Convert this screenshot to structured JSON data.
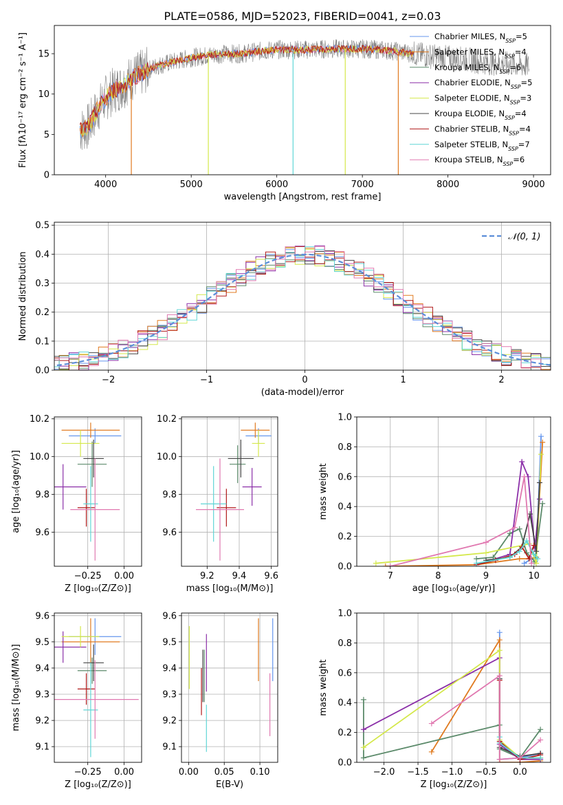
{
  "figure": {
    "title": "PLATE=0586, MJD=52023, FIBERID=0041, z=0.03"
  },
  "colors": [
    "#6495ed",
    "#e07a1f",
    "#5b8a6a",
    "#8b2fa8",
    "#d4e84a",
    "#444444",
    "#b01818",
    "#5fd6d6",
    "#e078b0"
  ],
  "chart_data": [
    {
      "id": "spectrum",
      "type": "line",
      "xlabel": "wavelength [Angstrom, rest frame]",
      "ylabel": "Flux [fλ10⁻¹⁷ erg cm⁻² s⁻¹ A⁻¹]",
      "xlim": [
        3400,
        9200
      ],
      "ylim": [
        0,
        18.5
      ],
      "xticks": [
        "4000",
        "5000",
        "6000",
        "7000",
        "8000",
        "9000"
      ],
      "yticks": [
        "0",
        "5",
        "10",
        "15"
      ],
      "legend": [
        "Chabrier MILES, N_SSP=5",
        "Salpeter MILES, N_SSP=4",
        "Kroupa MILES, N_SSP=6",
        "Chabrier ELODIE, N_SSP=5",
        "Salpeter ELODIE, N_SSP=3",
        "Kroupa ELODIE, N_SSP=4",
        "Chabrier STELIB, N_SSP=4",
        "Salpeter STELIB, N_SSP=7",
        "Kroupa STELIB, N_SSP=6"
      ],
      "envelope": {
        "x": [
          3700,
          3800,
          3900,
          4000,
          4100,
          4200,
          4300,
          4400,
          4500,
          4600,
          4800,
          5000,
          5200,
          5400,
          5600,
          5800,
          6000,
          6200,
          6400,
          6600,
          6800,
          7000,
          7200,
          7400,
          7600,
          7800,
          8000,
          8200,
          8400,
          8600,
          8800,
          8950
        ],
        "y": [
          5.5,
          6,
          8,
          9.5,
          10.5,
          11,
          12,
          12.5,
          13,
          13.5,
          14,
          14.5,
          14.8,
          15,
          15,
          15.3,
          15.5,
          15.5,
          15.5,
          15.6,
          15.6,
          15.6,
          15.5,
          15.3,
          15,
          14.7,
          14.5,
          14.3,
          14,
          13.8,
          13.6,
          13.5
        ]
      }
    },
    {
      "id": "residuals",
      "type": "histogram",
      "xlabel": "(data-model)/error",
      "ylabel": "Normed distribution",
      "xlim": [
        -2.55,
        2.5
      ],
      "ylim": [
        0,
        0.51
      ],
      "xticks": [
        "−2",
        "−1",
        "0",
        "1",
        "2"
      ],
      "yticks": [
        "0.0",
        "0.1",
        "0.2",
        "0.3",
        "0.4",
        "0.5"
      ],
      "legend": "𝒩(0, 1)"
    },
    {
      "id": "age-vs-Z",
      "type": "scatter",
      "xlabel": "Z [log₁₀(Z/Z⊙)]",
      "ylabel": "age  [log₁₀(age/yr)]",
      "xlim": [
        -0.48,
        0.12
      ],
      "ylim": [
        9.42,
        10.21
      ],
      "xticks": [
        "−0.25",
        "0.00"
      ],
      "yticks": [
        "9.6",
        "9.8",
        "10.0",
        "10.2"
      ],
      "points": [
        {
          "x": -0.2,
          "y": 10.11,
          "ex": 0.18,
          "ey": 0.04
        },
        {
          "x": -0.23,
          "y": 10.14,
          "ex": 0.2,
          "ey": 0.04
        },
        {
          "x": -0.22,
          "y": 9.96,
          "ex": 0.1,
          "ey": 0.12
        },
        {
          "x": -0.42,
          "y": 9.84,
          "ex": 0.16,
          "ey": 0.12
        },
        {
          "x": -0.3,
          "y": 10.07,
          "ex": 0.13,
          "ey": 0.07
        },
        {
          "x": -0.21,
          "y": 9.99,
          "ex": 0.07,
          "ey": 0.1
        },
        {
          "x": -0.26,
          "y": 9.73,
          "ex": 0.06,
          "ey": 0.1
        },
        {
          "x": -0.23,
          "y": 9.75,
          "ex": 0.05,
          "ey": 0.2
        },
        {
          "x": -0.2,
          "y": 9.72,
          "ex": 0.17,
          "ey": 0.27
        }
      ]
    },
    {
      "id": "age-vs-mass",
      "type": "scatter",
      "xlabel": "mass [log₁₀(M/M⊙)]",
      "ylabel": "",
      "xlim": [
        9.04,
        9.64
      ],
      "ylim": [
        9.42,
        10.21
      ],
      "xticks": [
        "9.2",
        "9.4",
        "9.6"
      ],
      "yticks": [
        "9.6",
        "9.8",
        "10.0",
        "10.2"
      ],
      "points": [
        {
          "x": 9.52,
          "y": 10.11,
          "ex": 0.08,
          "ey": 0.04
        },
        {
          "x": 9.5,
          "y": 10.14,
          "ex": 0.09,
          "ey": 0.04
        },
        {
          "x": 9.39,
          "y": 9.96,
          "ex": 0.05,
          "ey": 0.1
        },
        {
          "x": 9.48,
          "y": 9.84,
          "ex": 0.06,
          "ey": 0.1
        },
        {
          "x": 9.52,
          "y": 10.07,
          "ex": 0.04,
          "ey": 0.07
        },
        {
          "x": 9.41,
          "y": 9.99,
          "ex": 0.08,
          "ey": 0.1
        },
        {
          "x": 9.32,
          "y": 9.73,
          "ex": 0.06,
          "ey": 0.1
        },
        {
          "x": 9.24,
          "y": 9.75,
          "ex": 0.08,
          "ey": 0.2
        },
        {
          "x": 9.28,
          "y": 9.72,
          "ex": 0.15,
          "ey": 0.27
        }
      ]
    },
    {
      "id": "weight-vs-age",
      "type": "line",
      "xlabel": "age  [log₁₀(age/yr)]",
      "ylabel": "mass weight",
      "xlim": [
        6.3,
        10.35
      ],
      "ylim": [
        0,
        1
      ],
      "xticks": [
        "7",
        "8",
        "9",
        "10"
      ],
      "yticks": [
        "0.0",
        "0.2",
        "0.4",
        "0.6",
        "0.8",
        "1.0"
      ],
      "series": [
        {
          "x": [
            9.8,
            9.95,
            10.05,
            10.15
          ],
          "y": [
            0.02,
            0.05,
            0.06,
            0.87
          ]
        },
        {
          "x": [
            6.9,
            8.8,
            9.7,
            9.9,
            10.05,
            10.18
          ],
          "y": [
            0.0,
            0.01,
            0.05,
            0.05,
            0.06,
            0.83
          ]
        },
        {
          "x": [
            8.8,
            9.15,
            9.5,
            9.7,
            9.85,
            10.02,
            10.18
          ],
          "y": [
            0.05,
            0.06,
            0.22,
            0.25,
            0.09,
            0.03,
            0.42
          ]
        },
        {
          "x": [
            8.8,
            9.5,
            9.75,
            9.88,
            10.02,
            10.12
          ],
          "y": [
            0.01,
            0.08,
            0.7,
            0.6,
            0.12,
            0.45
          ]
        },
        {
          "x": [
            6.7,
            9.0,
            9.9,
            10.05,
            10.15
          ],
          "y": [
            0.02,
            0.09,
            0.15,
            0.02,
            0.75
          ]
        },
        {
          "x": [
            9.0,
            9.5,
            9.75,
            9.92,
            10.05,
            10.12
          ],
          "y": [
            0.04,
            0.06,
            0.13,
            0.35,
            0.1,
            0.56
          ]
        },
        {
          "x": [
            8.8,
            9.2,
            9.6,
            9.75,
            9.9,
            10.0
          ],
          "y": [
            0.01,
            0.04,
            0.08,
            0.13,
            0.05,
            0.14
          ]
        },
        {
          "x": [
            8.8,
            9.5,
            9.7,
            9.85,
            10.0,
            10.08
          ],
          "y": [
            0.02,
            0.06,
            0.1,
            0.17,
            0.08,
            0.05
          ]
        },
        {
          "x": [
            7.0,
            9.0,
            9.6,
            9.8,
            9.95
          ],
          "y": [
            0.0,
            0.16,
            0.26,
            0.6,
            0.02
          ]
        }
      ]
    },
    {
      "id": "mass-vs-Z",
      "type": "scatter",
      "xlabel": "Z [log₁₀(Z/Z⊙)]",
      "ylabel": "mass [log₁₀(M/M⊙)]",
      "xlim": [
        -0.48,
        0.12
      ],
      "ylim": [
        9.04,
        9.61
      ],
      "xticks": [
        "−0.25",
        "0.00"
      ],
      "yticks": [
        "9.1",
        "9.2",
        "9.3",
        "9.4",
        "9.5",
        "9.6"
      ],
      "points": [
        {
          "x": -0.2,
          "y": 9.52,
          "ex": 0.18,
          "ey": 0.07
        },
        {
          "x": -0.23,
          "y": 9.5,
          "ex": 0.2,
          "ey": 0.09
        },
        {
          "x": -0.22,
          "y": 9.39,
          "ex": 0.1,
          "ey": 0.05
        },
        {
          "x": -0.42,
          "y": 9.48,
          "ex": 0.16,
          "ey": 0.06
        },
        {
          "x": -0.3,
          "y": 9.52,
          "ex": 0.13,
          "ey": 0.04
        },
        {
          "x": -0.21,
          "y": 9.42,
          "ex": 0.07,
          "ey": 0.07
        },
        {
          "x": -0.26,
          "y": 9.32,
          "ex": 0.06,
          "ey": 0.06
        },
        {
          "x": -0.23,
          "y": 9.24,
          "ex": 0.05,
          "ey": 0.18
        },
        {
          "x": -0.2,
          "y": 9.28,
          "ex": 0.3,
          "ey": 0.15
        }
      ]
    },
    {
      "id": "mass-vs-EBV",
      "type": "scatter",
      "xlabel": "E(B-V)",
      "ylabel": "",
      "xlim": [
        -0.01,
        0.125
      ],
      "ylim": [
        9.04,
        9.61
      ],
      "xticks": [
        "0.00",
        "0.05",
        "0.10"
      ],
      "yticks": [
        "9.1",
        "9.2",
        "9.3",
        "9.4",
        "9.5",
        "9.6"
      ],
      "points": [
        {
          "x": 0.118,
          "y": 9.47,
          "ex": 0,
          "ey": 0.12
        },
        {
          "x": 0.098,
          "y": 9.47,
          "ex": 0,
          "ey": 0.12
        },
        {
          "x": 0.022,
          "y": 9.37,
          "ex": 0,
          "ey": 0.1
        },
        {
          "x": 0.025,
          "y": 9.42,
          "ex": 0,
          "ey": 0.11
        },
        {
          "x": 0.001,
          "y": 9.44,
          "ex": 0,
          "ey": 0.12
        },
        {
          "x": 0.02,
          "y": 9.37,
          "ex": 0,
          "ey": 0.1
        },
        {
          "x": 0.018,
          "y": 9.31,
          "ex": 0,
          "ey": 0.09
        },
        {
          "x": 0.025,
          "y": 9.17,
          "ex": 0,
          "ey": 0.09
        },
        {
          "x": 0.114,
          "y": 9.26,
          "ex": 0,
          "ey": 0.12
        }
      ]
    },
    {
      "id": "weight-vs-Z",
      "type": "line",
      "xlabel": "Z [log₁₀(Z/Z⊙)]",
      "ylabel": "mass weight",
      "xlim": [
        -2.4,
        0.45
      ],
      "ylim": [
        0,
        1
      ],
      "xticks": [
        "−2.0",
        "−1.5",
        "−1.0",
        "−0.5",
        "0.0"
      ],
      "yticks": [
        "0.0",
        "0.2",
        "0.4",
        "0.6",
        "0.8",
        "1.0"
      ],
      "series": [
        {
          "x": [
            -0.3,
            -0.3,
            0,
            0.3
          ],
          "y": [
            0.87,
            0.02,
            0.03,
            0.06
          ]
        },
        {
          "x": [
            -1.3,
            -0.3,
            -0.3,
            0,
            0.3
          ],
          "y": [
            0.07,
            0.82,
            0.0,
            0.0,
            0.01
          ]
        },
        {
          "x": [
            -2.3,
            -2.3,
            -0.3,
            -0.3,
            0,
            0.3
          ],
          "y": [
            0.42,
            0.03,
            0.25,
            0.09,
            0.03,
            0.22
          ]
        },
        {
          "x": [
            -2.3,
            -0.3,
            -0.3,
            0,
            0.3
          ],
          "y": [
            0.22,
            0.7,
            0.12,
            0.02,
            0.02
          ]
        },
        {
          "x": [
            -2.3,
            -0.3,
            -0.3,
            0,
            0.3
          ],
          "y": [
            0.1,
            0.75,
            0.15,
            0.03,
            0.03
          ]
        },
        {
          "x": [
            -0.3,
            -0.3,
            0,
            0.3
          ],
          "y": [
            0.56,
            0.1,
            0.04,
            0.06
          ]
        },
        {
          "x": [
            -0.3,
            -0.3,
            0,
            0.3
          ],
          "y": [
            0.55,
            0.14,
            0.02,
            0.05
          ]
        },
        {
          "x": [
            -0.3,
            -0.3,
            0,
            0.3
          ],
          "y": [
            0.17,
            0.13,
            0.03,
            0.03
          ]
        },
        {
          "x": [
            -1.3,
            -0.3,
            -0.3,
            0,
            0.3
          ],
          "y": [
            0.26,
            0.58,
            0.02,
            0.03,
            0.15
          ]
        }
      ]
    }
  ]
}
